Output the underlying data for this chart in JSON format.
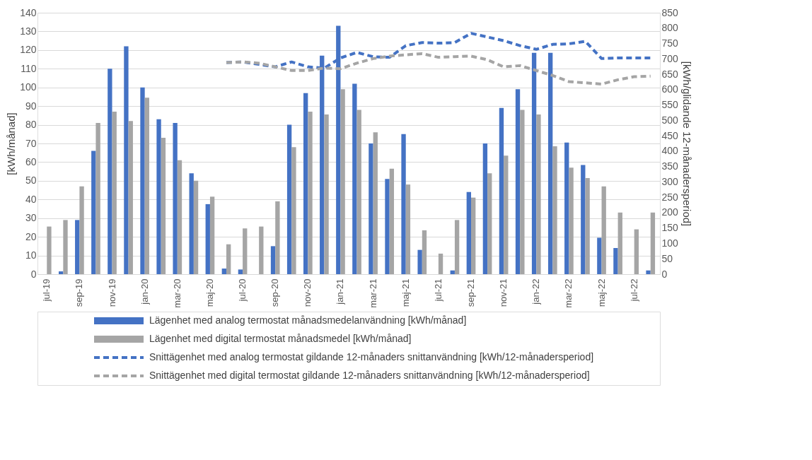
{
  "chart_data": {
    "type": "bar",
    "xlabel": null,
    "ylabel": "[kWh/månad]",
    "y2label": "[kWh/glidande 12-månadersperiod]",
    "categories": [
      "jul-19",
      null,
      "sep-19",
      null,
      "nov-19",
      null,
      "jan-20",
      null,
      "mar-20",
      null,
      "maj-20",
      null,
      "jul-20",
      null,
      "sep-20",
      null,
      "nov-20",
      null,
      "jan-21",
      null,
      "mar-21",
      null,
      "maj-21",
      null,
      "jul-21",
      null,
      "sep-21",
      null,
      "nov-21",
      null,
      "jan-22",
      null,
      "mar-22",
      null,
      "maj-22",
      null,
      "jul-22",
      null
    ],
    "series": [
      {
        "name": "Lägenhet med analog termostat månadsmedelanvändning [kWh/månad]",
        "color": "#4472c4",
        "values": [
          0,
          1.5,
          29,
          66,
          110,
          122,
          100,
          83,
          81,
          54,
          37.5,
          3,
          2.5,
          0,
          15,
          80,
          97,
          117,
          133,
          102,
          70,
          51,
          75,
          13,
          0,
          2,
          44,
          70,
          89,
          99,
          118.5,
          118.5,
          70.5,
          58.5,
          19.5,
          14,
          0,
          2
        ]
      },
      {
        "name": "Lägenhet med digital termostat månadsmedel [kWh/månad]",
        "color": "#a5a5a5",
        "values": [
          25.5,
          29,
          47,
          81,
          87,
          82,
          94.5,
          73,
          61,
          50,
          41.5,
          16,
          24.5,
          25.5,
          39,
          68,
          87,
          85.5,
          99,
          88,
          76,
          56.5,
          48,
          23.5,
          11,
          29,
          41,
          54,
          63.5,
          88,
          85.5,
          68.5,
          57,
          51.5,
          47,
          33,
          24,
          33
        ]
      },
      {
        "name": "Snittägenhet med analog termostat gildande 12-månaders snittanvändning [kWh/12-månadersperiod]",
        "type": "line",
        "axis": "y2",
        "line_style": "dashed",
        "color": "#4472c4",
        "values": [
          null,
          null,
          null,
          null,
          null,
          null,
          null,
          null,
          null,
          null,
          null,
          688,
          690,
          682,
          674,
          690,
          674,
          670,
          703,
          721,
          707,
          705,
          743,
          753,
          751,
          753,
          783,
          771,
          759,
          743,
          731,
          747,
          749,
          757,
          701,
          703,
          703,
          703
        ]
      },
      {
        "name": "Snittägenhet med digital termostat gildande 12-månaders snittanvändning [kWh/12-månadersperiod]",
        "type": "line",
        "axis": "y2",
        "line_style": "dashed",
        "color": "#a5a5a5",
        "values": [
          null,
          null,
          null,
          null,
          null,
          null,
          null,
          null,
          null,
          null,
          null,
          688,
          690,
          686,
          674,
          662,
          662,
          670,
          668,
          686,
          701,
          709,
          713,
          717,
          705,
          707,
          709,
          697,
          674,
          678,
          662,
          646,
          626,
          622,
          618,
          632,
          642,
          644
        ]
      }
    ],
    "ylim": [
      0,
      140
    ],
    "yticks": [
      0,
      10,
      20,
      30,
      40,
      50,
      60,
      70,
      80,
      90,
      100,
      110,
      120,
      130,
      140
    ],
    "y2lim": [
      0,
      850
    ],
    "y2ticks": [
      0,
      50,
      100,
      150,
      200,
      250,
      300,
      350,
      400,
      450,
      500,
      550,
      600,
      650,
      700,
      750,
      800,
      850
    ],
    "grid": "y",
    "legend": "bottom"
  }
}
